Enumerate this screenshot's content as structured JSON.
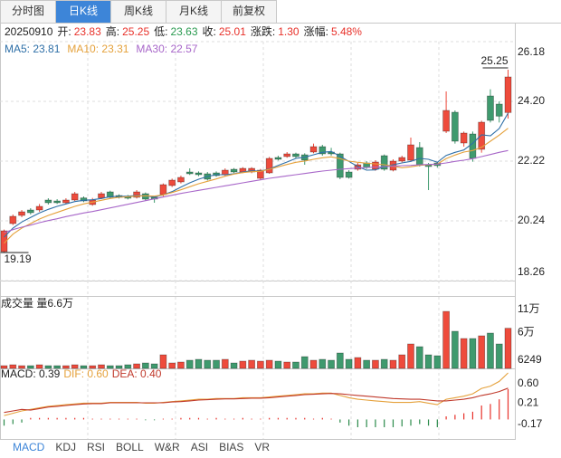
{
  "tabs": [
    "分时图",
    "日K线",
    "周K线",
    "月K线",
    "前复权"
  ],
  "active_tab": "日K线",
  "header": {
    "date": "20250910",
    "items": [
      {
        "label": "开:",
        "value": "23.83",
        "color": "#e8312a"
      },
      {
        "label": "高:",
        "value": "25.25",
        "color": "#e8312a"
      },
      {
        "label": "低:",
        "value": "23.63",
        "color": "#2a9a50"
      },
      {
        "label": "收:",
        "value": "25.01",
        "color": "#e8312a"
      },
      {
        "label": "涨跌:",
        "value": "1.30",
        "color": "#e8312a"
      },
      {
        "label": "涨幅:",
        "value": "5.48%",
        "color": "#e8312a"
      }
    ]
  },
  "indicator_tabs": [
    "MACD",
    "KDJ",
    "RSI",
    "BOLL",
    "W&R",
    "ASI",
    "BIAS",
    "VR"
  ],
  "active_indicator": "MACD",
  "chart_data": [
    {
      "type": "candlestick",
      "up_color": "#ee4b3c",
      "down_color": "#3f9a6e",
      "grid": true,
      "ylim": [
        18.26,
        26.18
      ],
      "yticks": [
        26.18,
        {
          "value": 24.2,
          "label": "24.20"
        },
        22.22,
        20.24,
        18.26
      ],
      "max_label": 25.25,
      "min_label": 19.19,
      "open": [
        19.22,
        20.15,
        20.42,
        20.6,
        20.6,
        20.93,
        20.9,
        20.84,
        20.93,
        21.0,
        20.78,
        21.0,
        21.2,
        21.08,
        21.05,
        21.02,
        21.14,
        21.02,
        21.11,
        21.41,
        21.53,
        21.86,
        21.83,
        21.8,
        21.83,
        21.77,
        21.95,
        21.86,
        21.86,
        21.65,
        21.83,
        22.34,
        22.37,
        22.46,
        22.43,
        22.52,
        22.7,
        22.52,
        22.46,
        21.86,
        21.95,
        22.16,
        21.95,
        22.4,
        21.92,
        22.22,
        22.25,
        22.67,
        22.1,
        22.16,
        23.21,
        23.84,
        22.82,
        23.12,
        22.61,
        24.38,
        24.11,
        23.83
      ],
      "high": [
        19.95,
        20.45,
        20.6,
        20.66,
        20.8,
        20.99,
        20.96,
        20.99,
        21.2,
        21.05,
        21.0,
        21.2,
        21.24,
        21.12,
        21.1,
        21.26,
        21.18,
        21.06,
        21.48,
        21.64,
        21.74,
        21.98,
        21.88,
        21.86,
        21.88,
        21.98,
        21.99,
        22.02,
        22.02,
        21.96,
        22.36,
        22.4,
        22.52,
        22.5,
        22.48,
        22.8,
        22.76,
        22.66,
        22.5,
        21.92,
        22.16,
        22.22,
        22.25,
        22.44,
        22.28,
        22.4,
        23.0,
        22.85,
        22.16,
        22.2,
        24.53,
        23.9,
        23.2,
        23.2,
        23.56,
        24.6,
        24.2,
        25.25
      ],
      "low": [
        19.19,
        20.1,
        20.36,
        20.45,
        20.54,
        20.78,
        20.8,
        20.8,
        20.9,
        20.86,
        20.74,
        20.96,
        20.98,
        20.98,
        20.95,
        20.98,
        20.9,
        20.84,
        21.05,
        21.36,
        21.48,
        21.76,
        21.72,
        21.58,
        21.7,
        21.72,
        21.82,
        21.82,
        21.82,
        21.6,
        21.8,
        22.24,
        22.33,
        22.32,
        22.1,
        22.48,
        22.4,
        22.4,
        21.62,
        21.64,
        21.9,
        21.96,
        21.9,
        21.9,
        21.88,
        22.18,
        22.2,
        22.04,
        21.26,
        22.0,
        23.15,
        22.8,
        22.7,
        22.2,
        22.5,
        23.5,
        23.5,
        23.63
      ],
      "close": [
        19.91,
        20.39,
        20.54,
        20.51,
        20.72,
        20.84,
        20.84,
        20.93,
        21.14,
        20.9,
        20.93,
        21.14,
        21.02,
        21.02,
        20.99,
        21.2,
        20.96,
        20.96,
        21.44,
        21.59,
        21.68,
        21.8,
        21.77,
        21.62,
        21.74,
        21.92,
        21.86,
        21.98,
        21.98,
        21.92,
        22.31,
        22.28,
        22.46,
        22.37,
        22.25,
        22.7,
        22.46,
        22.46,
        21.68,
        21.68,
        22.1,
        22.01,
        22.19,
        21.95,
        22.22,
        22.34,
        22.76,
        22.1,
        22.04,
        22.07,
        23.9,
        22.88,
        23.15,
        22.31,
        23.51,
        23.57,
        23.71,
        25.01
      ],
      "series": [
        {
          "legend_text": "MA5: 23.81",
          "color": "#2e6fa7",
          "values": [
            19.7,
            20.0,
            20.2,
            20.35,
            20.5,
            20.62,
            20.72,
            20.8,
            20.88,
            20.92,
            20.94,
            20.98,
            21.04,
            21.05,
            21.06,
            21.08,
            21.07,
            21.03,
            21.1,
            21.21,
            21.36,
            21.5,
            21.62,
            21.71,
            21.77,
            21.77,
            21.8,
            21.86,
            21.9,
            21.89,
            21.96,
            22.08,
            22.19,
            22.31,
            22.35,
            22.43,
            22.51,
            22.54,
            22.38,
            22.21,
            22.04,
            21.92,
            21.93,
            22.04,
            22.1,
            22.16,
            22.21,
            22.31,
            22.28,
            22.18,
            22.41,
            22.51,
            22.59,
            22.81,
            23.09,
            23.06,
            23.3,
            23.81
          ]
        },
        {
          "legend_text": "MA10: 23.31",
          "color": "#e5a13b",
          "values": [
            19.5,
            19.8,
            20.0,
            20.15,
            20.3,
            20.42,
            20.52,
            20.62,
            20.72,
            20.8,
            20.86,
            20.92,
            20.98,
            21.02,
            21.04,
            21.06,
            21.07,
            21.06,
            21.1,
            21.18,
            21.27,
            21.37,
            21.47,
            21.55,
            21.63,
            21.72,
            21.79,
            21.84,
            21.87,
            21.88,
            21.95,
            22.03,
            22.11,
            22.18,
            22.22,
            22.28,
            22.33,
            22.36,
            22.3,
            22.22,
            22.18,
            22.15,
            22.13,
            22.1,
            22.05,
            22.0,
            22.03,
            22.08,
            22.1,
            22.12,
            22.3,
            22.42,
            22.52,
            22.57,
            22.68,
            22.88,
            23.08,
            23.31
          ]
        },
        {
          "legend_text": "MA30: 22.57",
          "color": "#a867c9",
          "values": [
            19.85,
            19.95,
            20.03,
            20.1,
            20.18,
            20.25,
            20.31,
            20.38,
            20.44,
            20.5,
            20.55,
            20.61,
            20.67,
            20.73,
            20.79,
            20.85,
            20.91,
            20.97,
            21.03,
            21.09,
            21.15,
            21.2,
            21.25,
            21.3,
            21.35,
            21.4,
            21.45,
            21.5,
            21.55,
            21.6,
            21.65,
            21.69,
            21.73,
            21.77,
            21.81,
            21.85,
            21.89,
            21.92,
            21.95,
            21.97,
            21.99,
            22.01,
            22.02,
            22.04,
            22.05,
            22.07,
            22.08,
            22.1,
            22.11,
            22.12,
            22.16,
            22.21,
            22.25,
            22.3,
            22.37,
            22.44,
            22.51,
            22.57
          ]
        }
      ]
    },
    {
      "type": "bar",
      "title": "成交量 量6.6万",
      "ylim": [
        6249,
        110000
      ],
      "yticks": [
        {
          "value": 110000,
          "label": "11万"
        },
        {
          "value": 60000,
          "label": "6万"
        },
        6249
      ],
      "values": [
        10290,
        11640,
        10290,
        10290,
        11640,
        10290,
        10290,
        10290,
        11640,
        10290,
        10290,
        11640,
        10290,
        10290,
        11640,
        12990,
        14330,
        12990,
        26450,
        14330,
        15680,
        18370,
        19720,
        18370,
        18370,
        19720,
        14330,
        17030,
        18370,
        17030,
        18370,
        17030,
        15680,
        15680,
        23760,
        18370,
        19720,
        18370,
        29150,
        19720,
        22410,
        18370,
        18370,
        19720,
        18370,
        26450,
        42620,
        38580,
        26450,
        25100,
        91110,
        61480,
        50700,
        50700,
        54740,
        58780,
        42620,
        66000
      ]
    },
    {
      "type": "macd",
      "up_color": "#e8312a",
      "down_color": "#2a8a4a",
      "ylim": [
        -0.17,
        0.6
      ],
      "yticks": [
        {
          "value": 0.6,
          "label": "0.60"
        },
        0.21,
        -0.17
      ],
      "histogram": {
        "legend_text": "MACD: 0.39",
        "color": "#222222",
        "values": [
          -0.08,
          -0.06,
          -0.04,
          0.02,
          0.02,
          0.02,
          0.02,
          0.02,
          0.02,
          0.02,
          0.01,
          0.01,
          0.01,
          0.01,
          0.01,
          0.01,
          -0.01,
          -0.01,
          0.01,
          0.01,
          0.02,
          0.02,
          0.02,
          0.01,
          0.02,
          0.01,
          0.01,
          0.02,
          0.01,
          0.01,
          0.02,
          0.02,
          0.02,
          0.02,
          0.02,
          0.01,
          0.02,
          0.01,
          -0.04,
          -0.08,
          -0.1,
          -0.1,
          -0.1,
          -0.1,
          -0.1,
          -0.09,
          -0.08,
          -0.06,
          -0.08,
          -0.1,
          0.04,
          0.06,
          0.08,
          0.1,
          0.18,
          0.2,
          0.26,
          0.39
        ]
      },
      "series": [
        {
          "legend_text": "DIF: 0.60",
          "color": "#e5a13b",
          "values": [
            0.05,
            0.08,
            0.11,
            0.13,
            0.15,
            0.17,
            0.18,
            0.19,
            0.2,
            0.21,
            0.21,
            0.21,
            0.22,
            0.22,
            0.22,
            0.22,
            0.21,
            0.21,
            0.22,
            0.23,
            0.24,
            0.25,
            0.26,
            0.26,
            0.27,
            0.27,
            0.27,
            0.28,
            0.28,
            0.28,
            0.29,
            0.3,
            0.31,
            0.32,
            0.33,
            0.33,
            0.34,
            0.34,
            0.31,
            0.28,
            0.26,
            0.25,
            0.24,
            0.23,
            0.22,
            0.22,
            0.22,
            0.23,
            0.21,
            0.19,
            0.26,
            0.28,
            0.3,
            0.33,
            0.4,
            0.43,
            0.49,
            0.6
          ]
        },
        {
          "legend_text": "DEA: 0.40",
          "color": "#c0392b",
          "values": [
            0.09,
            0.11,
            0.13,
            0.12,
            0.14,
            0.16,
            0.17,
            0.18,
            0.19,
            0.2,
            0.205,
            0.205,
            0.215,
            0.215,
            0.215,
            0.215,
            0.215,
            0.215,
            0.215,
            0.225,
            0.23,
            0.24,
            0.25,
            0.255,
            0.26,
            0.265,
            0.265,
            0.27,
            0.275,
            0.275,
            0.28,
            0.29,
            0.3,
            0.31,
            0.32,
            0.325,
            0.33,
            0.335,
            0.33,
            0.32,
            0.31,
            0.3,
            0.29,
            0.28,
            0.27,
            0.265,
            0.26,
            0.26,
            0.25,
            0.24,
            0.24,
            0.25,
            0.26,
            0.28,
            0.31,
            0.33,
            0.36,
            0.404
          ]
        }
      ]
    }
  ]
}
